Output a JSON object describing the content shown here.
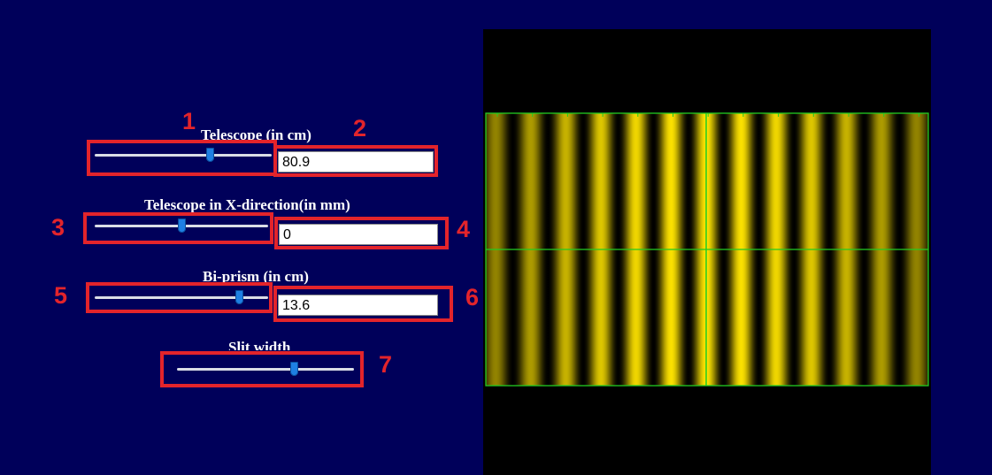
{
  "controls": {
    "telescope": {
      "label": "Telescope (in cm)",
      "value": "80.9",
      "slider_fraction": 0.65
    },
    "telescope_x": {
      "label": "Telescope in X-direction(in mm)",
      "value": "0",
      "slider_fraction": 0.5
    },
    "biprism": {
      "label": "Bi-prism (in cm)",
      "value": "13.6",
      "slider_fraction": 0.83
    },
    "slit_width": {
      "label": "Slit width",
      "slider_fraction": 0.66
    }
  },
  "annotations": [
    "1",
    "2",
    "3",
    "4",
    "5",
    "6",
    "7"
  ],
  "colors": {
    "background": "#00005a",
    "annotation": "#e3242b",
    "crosshair": "#22cc22",
    "fringe": "#ffe000"
  }
}
